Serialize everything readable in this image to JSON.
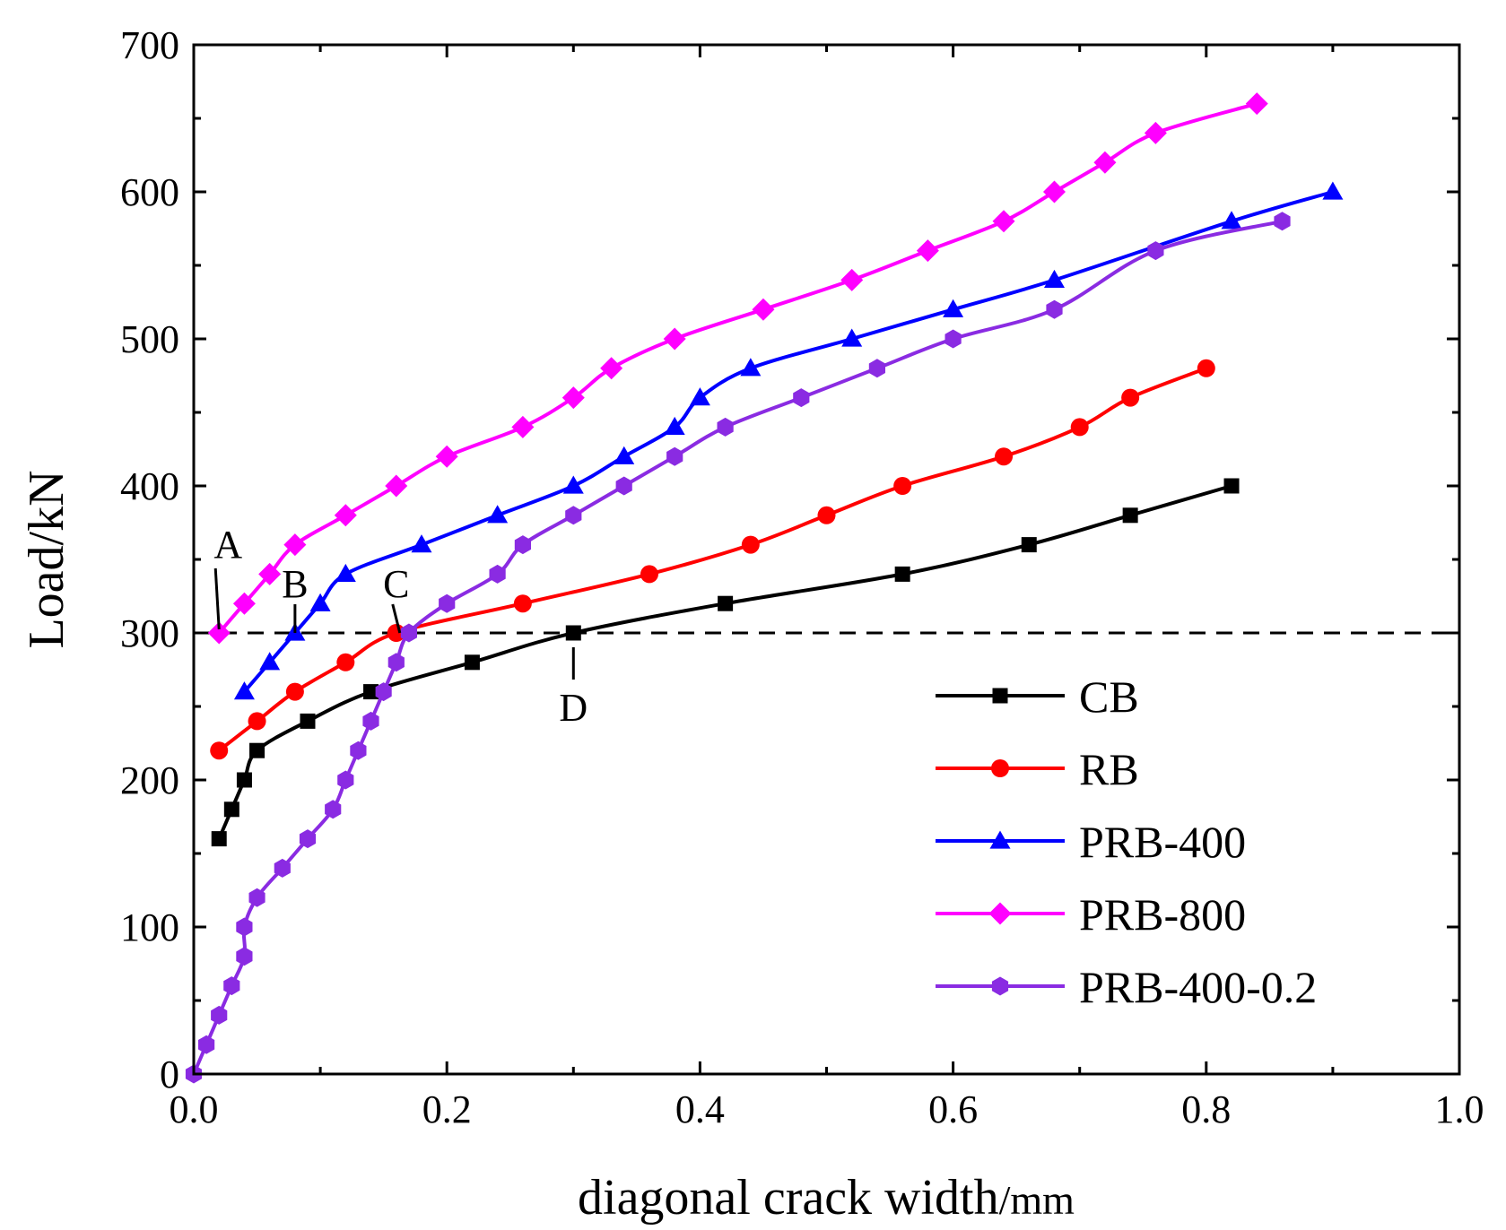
{
  "chart_data": {
    "type": "line",
    "title": "",
    "xlabel": "diagonal crack width",
    "xlabel_unit": "/mm",
    "ylabel": "Load/kN",
    "xlim": [
      0,
      1.0
    ],
    "ylim": [
      0,
      700
    ],
    "xticks": [
      "0.0",
      "0.2",
      "0.4",
      "0.6",
      "0.8",
      "1.0"
    ],
    "yticks": [
      "0",
      "100",
      "200",
      "300",
      "400",
      "500",
      "600",
      "700"
    ],
    "grid": false,
    "legend_position": "bottom-right",
    "reference_line": {
      "y": 300,
      "style": "dashed"
    },
    "annotations": [
      {
        "label": "A",
        "x": 0.02,
        "y": 300
      },
      {
        "label": "B",
        "x": 0.08,
        "y": 300
      },
      {
        "label": "C",
        "x": 0.16,
        "y": 300
      },
      {
        "label": "D",
        "x": 0.3,
        "y": 300
      }
    ],
    "series": [
      {
        "name": "CB",
        "color": "#000000",
        "marker": "square",
        "x": [
          0.02,
          0.03,
          0.04,
          0.05,
          0.09,
          0.14,
          0.22,
          0.3,
          0.42,
          0.56,
          0.66,
          0.74,
          0.82
        ],
        "y": [
          160,
          180,
          200,
          220,
          240,
          260,
          280,
          300,
          320,
          340,
          360,
          380,
          400
        ]
      },
      {
        "name": "RB",
        "color": "#ff0000",
        "marker": "circle",
        "x": [
          0.02,
          0.05,
          0.08,
          0.12,
          0.16,
          0.26,
          0.36,
          0.44,
          0.5,
          0.56,
          0.64,
          0.7,
          0.74,
          0.8
        ],
        "y": [
          220,
          240,
          260,
          280,
          300,
          320,
          340,
          360,
          380,
          400,
          420,
          440,
          460,
          480
        ]
      },
      {
        "name": "PRB-400",
        "color": "#0000ff",
        "marker": "triangle",
        "x": [
          0.04,
          0.06,
          0.08,
          0.1,
          0.12,
          0.18,
          0.24,
          0.3,
          0.34,
          0.38,
          0.4,
          0.44,
          0.52,
          0.6,
          0.68,
          0.82,
          0.9
        ],
        "y": [
          260,
          280,
          300,
          320,
          340,
          360,
          380,
          400,
          420,
          440,
          460,
          480,
          500,
          520,
          540,
          580,
          600
        ]
      },
      {
        "name": "PRB-800",
        "color": "#ff00ff",
        "marker": "diamond",
        "x": [
          0.02,
          0.04,
          0.06,
          0.08,
          0.12,
          0.16,
          0.2,
          0.26,
          0.3,
          0.33,
          0.38,
          0.45,
          0.52,
          0.58,
          0.64,
          0.68,
          0.72,
          0.76,
          0.84
        ],
        "y": [
          300,
          320,
          340,
          360,
          380,
          400,
          420,
          440,
          460,
          480,
          500,
          520,
          540,
          560,
          580,
          600,
          620,
          640,
          660
        ]
      },
      {
        "name": "PRB-400-0.2",
        "color": "#8a2be2",
        "marker": "hexagon",
        "x": [
          0.0,
          0.01,
          0.02,
          0.03,
          0.04,
          0.04,
          0.05,
          0.07,
          0.09,
          0.11,
          0.12,
          0.13,
          0.14,
          0.15,
          0.16,
          0.17,
          0.2,
          0.24,
          0.26,
          0.3,
          0.34,
          0.38,
          0.42,
          0.48,
          0.54,
          0.6,
          0.68,
          0.76,
          0.86
        ],
        "y": [
          0,
          20,
          40,
          60,
          80,
          100,
          120,
          140,
          160,
          180,
          200,
          220,
          240,
          260,
          280,
          300,
          320,
          340,
          360,
          380,
          400,
          420,
          440,
          460,
          480,
          500,
          520,
          560,
          580
        ]
      }
    ]
  }
}
